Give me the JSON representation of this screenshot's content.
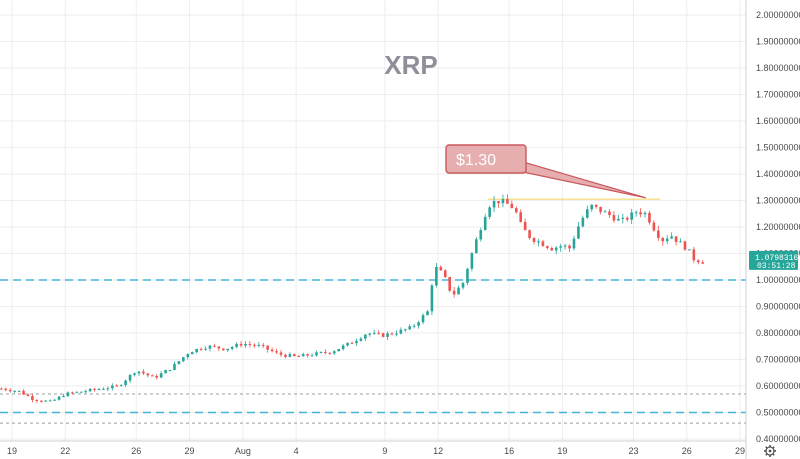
{
  "chart_data": {
    "type": "candlestick",
    "title": "XRP",
    "yticks": [
      "2.00000000",
      "1.90000000",
      "1.80000000",
      "1.70000000",
      "1.60000000",
      "1.50000000",
      "1.40000000",
      "1.30000000",
      "1.20000000",
      "1.10000000",
      "1.00000000",
      "0.90000000",
      "0.80000000",
      "0.70000000",
      "0.60000000",
      "0.50000000",
      "0.40000000"
    ],
    "ylim": [
      0.38,
      2.05
    ],
    "xticks": [
      {
        "label": "19",
        "t": 0
      },
      {
        "label": "22",
        "t": 3
      },
      {
        "label": "26",
        "t": 7
      },
      {
        "label": "29",
        "t": 10
      },
      {
        "label": "Aug",
        "t": 13
      },
      {
        "label": "4",
        "t": 16
      },
      {
        "label": "9",
        "t": 21
      },
      {
        "label": "12",
        "t": 24
      },
      {
        "label": "16",
        "t": 28
      },
      {
        "label": "19",
        "t": 31
      },
      {
        "label": "23",
        "t": 35
      },
      {
        "label": "26",
        "t": 38
      },
      {
        "label": "29",
        "t": 41
      }
    ],
    "xlim": [
      -0.6,
      41.8
    ],
    "price_keypoints": [
      [
        -0.6,
        0.59
      ],
      [
        0.4,
        0.58
      ],
      [
        1.2,
        0.55
      ],
      [
        2.2,
        0.54
      ],
      [
        3,
        0.57
      ],
      [
        4,
        0.58
      ],
      [
        5,
        0.59
      ],
      [
        6,
        0.6
      ],
      [
        7,
        0.66
      ],
      [
        8,
        0.63
      ],
      [
        9,
        0.67
      ],
      [
        10,
        0.73
      ],
      [
        11,
        0.75
      ],
      [
        12,
        0.74
      ],
      [
        13,
        0.76
      ],
      [
        14,
        0.75
      ],
      [
        15,
        0.72
      ],
      [
        16,
        0.71
      ],
      [
        17,
        0.72
      ],
      [
        18,
        0.73
      ],
      [
        19,
        0.76
      ],
      [
        20,
        0.8
      ],
      [
        20.8,
        0.79
      ],
      [
        21.5,
        0.8
      ],
      [
        22.5,
        0.82
      ],
      [
        23.4,
        0.88
      ],
      [
        23.8,
        1.05
      ],
      [
        24.3,
        1.02
      ],
      [
        24.8,
        0.94
      ],
      [
        25.4,
        0.99
      ],
      [
        25.8,
        1.08
      ],
      [
        26.4,
        1.2
      ],
      [
        26.8,
        1.28
      ],
      [
        27.3,
        1.3
      ],
      [
        27.8,
        1.29
      ],
      [
        28.3,
        1.27
      ],
      [
        28.7,
        1.2
      ],
      [
        29.2,
        1.16
      ],
      [
        29.8,
        1.14
      ],
      [
        30.4,
        1.12
      ],
      [
        31,
        1.13
      ],
      [
        31.4,
        1.12
      ],
      [
        32,
        1.22
      ],
      [
        32.6,
        1.28
      ],
      [
        33.2,
        1.26
      ],
      [
        33.8,
        1.24
      ],
      [
        34.3,
        1.22
      ],
      [
        34.8,
        1.24
      ],
      [
        35.2,
        1.26
      ],
      [
        35.7,
        1.25
      ],
      [
        36.2,
        1.19
      ],
      [
        36.6,
        1.15
      ],
      [
        37.1,
        1.17
      ],
      [
        37.6,
        1.14
      ],
      [
        38,
        1.12
      ],
      [
        38.4,
        1.08
      ],
      [
        38.9,
        1.07
      ]
    ],
    "horizontal_levels": [
      {
        "price": 1.0,
        "style": "dashed",
        "color": "#42b5d6"
      },
      {
        "price": 0.5,
        "style": "dashed",
        "color": "#42b5d6"
      },
      {
        "price": 0.57,
        "style": "dotted",
        "color": "#9aa0a6"
      },
      {
        "price": 0.46,
        "style": "dotted",
        "color": "#9aa0a6"
      }
    ],
    "resistance_line": {
      "price": 1.305,
      "from_t": 26.8,
      "to_t": 36.5,
      "color": "#f5d76e"
    },
    "callout": {
      "text": "$1.30",
      "target_t": 35.7,
      "target_price": 1.31,
      "color": "#c8585c",
      "fill": "#e7aeb0"
    },
    "last_price": {
      "value": "1.07983163",
      "time": "03:51:28",
      "price": 1.0798,
      "color": "#26a69a"
    },
    "colors": {
      "up": "#26a69a",
      "down": "#ef5350",
      "grid": "#eeeeee",
      "axis": "#d0d0d0"
    }
  },
  "icons": {
    "settings": "gear-icon"
  }
}
